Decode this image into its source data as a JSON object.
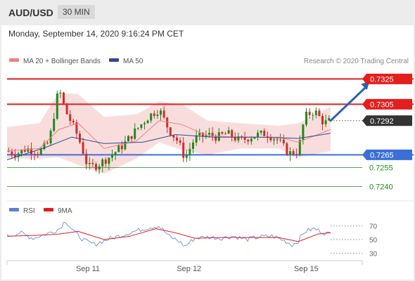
{
  "header": {
    "symbol": "AUD/USD",
    "timeframe": "30 MIN"
  },
  "subheader": {
    "datetime": "Monday, September 14, 2020 9:16:24 PM CET"
  },
  "credit": "Research © 2020 Trading Central",
  "colors": {
    "resistance": "#e31e1e",
    "support": "#3a6fd8",
    "target": "#1f8a1f",
    "last_price": "#333333",
    "bollinger_fill": "#f7cfcf",
    "ma20": "#f08080",
    "ma50": "#2b4d8c",
    "candle_up": "#1f8a1f",
    "candle_down": "#d12b2b",
    "rsi": "#5b7fd6",
    "rsi_ma": "#e31e1e",
    "arrow": "#2a62b8"
  },
  "chart_data": [
    {
      "type": "candlestick",
      "title": "",
      "legend": [
        {
          "name": "MA 20 + Bollinger Bands",
          "color": "#f08080"
        },
        {
          "name": "MA 50",
          "color": "#2b4d8c"
        }
      ],
      "x_ticks": [
        {
          "label": "Sep 11",
          "t": 0.25
        },
        {
          "label": "Sep 12",
          "t": 0.5625
        },
        {
          "label": "Sep 15",
          "t": 0.9245
        }
      ],
      "ylim": [
        0.7233,
        0.7333
      ],
      "levels": [
        {
          "value": 0.7325,
          "label": "0.7325",
          "kind": "resistance"
        },
        {
          "value": 0.7305,
          "label": "0.7305",
          "kind": "resistance"
        },
        {
          "value": 0.7292,
          "label": "0.7292",
          "kind": "last"
        },
        {
          "value": 0.7265,
          "label": "0.7265",
          "kind": "support"
        },
        {
          "value": 0.7255,
          "label": "0.7255",
          "kind": "target"
        },
        {
          "value": 0.724,
          "label": "0.7240",
          "kind": "target"
        }
      ],
      "price_path": [
        [
          0.0,
          0.7268
        ],
        [
          0.03,
          0.7266
        ],
        [
          0.06,
          0.727
        ],
        [
          0.1,
          0.7267
        ],
        [
          0.13,
          0.7275
        ],
        [
          0.16,
          0.7318
        ],
        [
          0.18,
          0.73
        ],
        [
          0.21,
          0.7285
        ],
        [
          0.23,
          0.7272
        ],
        [
          0.25,
          0.7255
        ],
        [
          0.28,
          0.7257
        ],
        [
          0.32,
          0.7264
        ],
        [
          0.36,
          0.7273
        ],
        [
          0.4,
          0.7285
        ],
        [
          0.44,
          0.7296
        ],
        [
          0.47,
          0.7301
        ],
        [
          0.5,
          0.7285
        ],
        [
          0.53,
          0.7275
        ],
        [
          0.55,
          0.7262
        ],
        [
          0.58,
          0.7278
        ],
        [
          0.62,
          0.7281
        ],
        [
          0.65,
          0.7279
        ],
        [
          0.68,
          0.7282
        ],
        [
          0.72,
          0.7276
        ],
        [
          0.76,
          0.728
        ],
        [
          0.8,
          0.7282
        ],
        [
          0.84,
          0.7276
        ],
        [
          0.87,
          0.7266
        ],
        [
          0.9,
          0.7268
        ],
        [
          0.92,
          0.7295
        ],
        [
          0.95,
          0.73
        ],
        [
          0.98,
          0.729
        ],
        [
          1.0,
          0.7292
        ]
      ],
      "ma20": [
        [
          0.0,
          0.7268
        ],
        [
          0.1,
          0.727
        ],
        [
          0.16,
          0.7285
        ],
        [
          0.22,
          0.729
        ],
        [
          0.3,
          0.727
        ],
        [
          0.4,
          0.7276
        ],
        [
          0.47,
          0.7292
        ],
        [
          0.54,
          0.7289
        ],
        [
          0.62,
          0.728
        ],
        [
          0.72,
          0.7279
        ],
        [
          0.84,
          0.7279
        ],
        [
          0.9,
          0.7275
        ],
        [
          1.0,
          0.7285
        ]
      ],
      "ma50": [
        [
          0.0,
          0.7261
        ],
        [
          0.12,
          0.7271
        ],
        [
          0.2,
          0.7279
        ],
        [
          0.3,
          0.7274
        ],
        [
          0.42,
          0.7275
        ],
        [
          0.52,
          0.7281
        ],
        [
          0.64,
          0.7279
        ],
        [
          0.78,
          0.7279
        ],
        [
          0.9,
          0.7278
        ],
        [
          1.0,
          0.7282
        ]
      ],
      "bb_upper": [
        [
          0.0,
          0.7287
        ],
        [
          0.1,
          0.729
        ],
        [
          0.16,
          0.7314
        ],
        [
          0.22,
          0.7313
        ],
        [
          0.3,
          0.7295
        ],
        [
          0.4,
          0.7297
        ],
        [
          0.47,
          0.7307
        ],
        [
          0.54,
          0.7305
        ],
        [
          0.62,
          0.7292
        ],
        [
          0.72,
          0.729
        ],
        [
          0.84,
          0.7288
        ],
        [
          0.9,
          0.729
        ],
        [
          1.0,
          0.7303
        ]
      ],
      "bb_lower": [
        [
          0.0,
          0.7262
        ],
        [
          0.1,
          0.7262
        ],
        [
          0.16,
          0.7263
        ],
        [
          0.22,
          0.7257
        ],
        [
          0.3,
          0.725
        ],
        [
          0.4,
          0.7262
        ],
        [
          0.47,
          0.7275
        ],
        [
          0.54,
          0.7269
        ],
        [
          0.62,
          0.7265
        ],
        [
          0.72,
          0.727
        ],
        [
          0.84,
          0.727
        ],
        [
          0.9,
          0.7263
        ],
        [
          1.0,
          0.7268
        ]
      ],
      "arrow": {
        "from": [
          1.0,
          0.7292
        ],
        "to": [
          1.12,
          0.7323
        ]
      }
    },
    {
      "type": "line",
      "title": "",
      "legend": [
        {
          "name": "RSI",
          "color": "#5b7fd6"
        },
        {
          "name": "9MA",
          "color": "#e31e1e"
        }
      ],
      "ylim": [
        20,
        80
      ],
      "y_ticks": [
        {
          "value": 70,
          "label": "70"
        },
        {
          "value": 50,
          "label": "50"
        },
        {
          "value": 30,
          "label": "30"
        }
      ],
      "rsi": [
        [
          0.0,
          55
        ],
        [
          0.04,
          60
        ],
        [
          0.08,
          52
        ],
        [
          0.12,
          58
        ],
        [
          0.16,
          65
        ],
        [
          0.18,
          78
        ],
        [
          0.21,
          60
        ],
        [
          0.24,
          48
        ],
        [
          0.27,
          43
        ],
        [
          0.31,
          50
        ],
        [
          0.35,
          56
        ],
        [
          0.4,
          63
        ],
        [
          0.44,
          68
        ],
        [
          0.47,
          70
        ],
        [
          0.5,
          55
        ],
        [
          0.53,
          48
        ],
        [
          0.55,
          40
        ],
        [
          0.58,
          52
        ],
        [
          0.62,
          54
        ],
        [
          0.66,
          52
        ],
        [
          0.7,
          55
        ],
        [
          0.74,
          50
        ],
        [
          0.78,
          54
        ],
        [
          0.82,
          55
        ],
        [
          0.86,
          48
        ],
        [
          0.88,
          42
        ],
        [
          0.9,
          48
        ],
        [
          0.92,
          62
        ],
        [
          0.95,
          66
        ],
        [
          0.98,
          60
        ],
        [
          1.0,
          58
        ]
      ],
      "rsi_ma": [
        [
          0.0,
          55
        ],
        [
          0.08,
          56
        ],
        [
          0.16,
          58
        ],
        [
          0.22,
          62
        ],
        [
          0.3,
          50
        ],
        [
          0.38,
          55
        ],
        [
          0.46,
          66
        ],
        [
          0.52,
          60
        ],
        [
          0.58,
          52
        ],
        [
          0.66,
          53
        ],
        [
          0.76,
          53
        ],
        [
          0.84,
          53
        ],
        [
          0.9,
          47
        ],
        [
          0.96,
          58
        ],
        [
          1.0,
          60
        ]
      ]
    }
  ]
}
